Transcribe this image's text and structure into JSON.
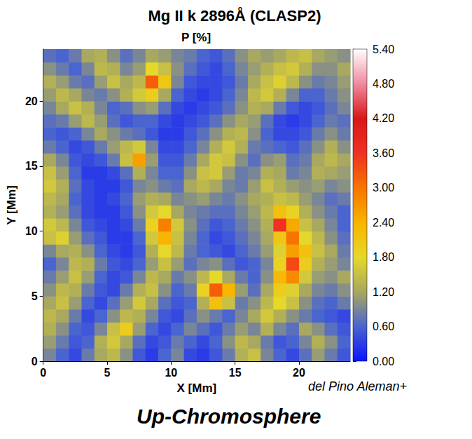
{
  "chart_data": {
    "type": "heatmap",
    "title": "Mg II k 2896Å (CLASP2)",
    "subtitle": "P [%]",
    "x_label": "X [Mm]",
    "y_label": "Y [Mm]",
    "annotations": [
      "del Pino Aleman+",
      "Up-Chromosphere"
    ],
    "xlim": [
      0,
      24
    ],
    "ylim": [
      0,
      24
    ],
    "xticks": [
      0,
      5,
      10,
      15,
      20
    ],
    "yticks": [
      0,
      5,
      10,
      15,
      20
    ],
    "grid": false,
    "x": [
      0.5,
      1.5,
      2.5,
      3.5,
      4.5,
      5.5,
      6.5,
      7.5,
      8.5,
      9.5,
      10.5,
      11.5,
      12.5,
      13.5,
      14.5,
      15.5,
      16.5,
      17.5,
      18.5,
      19.5,
      20.5,
      21.5,
      22.5,
      23.5
    ],
    "y": [
      0.5,
      1.5,
      2.5,
      3.5,
      4.5,
      5.5,
      6.5,
      7.5,
      8.5,
      9.5,
      10.5,
      11.5,
      12.5,
      13.5,
      14.5,
      15.5,
      16.5,
      17.5,
      18.5,
      19.5,
      20.5,
      21.5,
      22.5,
      23.5
    ],
    "values": [
      [
        0.9,
        0.6,
        0.4,
        0.8,
        1.2,
        1.4,
        1.0,
        0.5,
        0.3,
        0.6,
        0.9,
        0.4,
        0.3,
        0.5,
        0.8,
        1.3,
        1.5,
        0.9,
        0.6,
        0.4,
        0.7,
        1.1,
        0.8,
        0.5
      ],
      [
        1.1,
        0.8,
        0.5,
        0.6,
        1.3,
        1.6,
        1.2,
        0.7,
        0.4,
        0.5,
        0.8,
        0.6,
        0.4,
        0.6,
        1.0,
        1.4,
        1.2,
        0.8,
        0.5,
        0.6,
        0.9,
        1.3,
        1.0,
        0.6
      ],
      [
        1.3,
        1.0,
        0.6,
        0.5,
        0.9,
        1.5,
        2.0,
        1.1,
        0.6,
        0.4,
        0.6,
        0.9,
        0.7,
        0.5,
        0.8,
        1.1,
        0.9,
        1.3,
        0.9,
        0.7,
        1.2,
        1.0,
        0.7,
        0.5
      ],
      [
        1.4,
        1.2,
        0.8,
        0.4,
        0.6,
        1.0,
        1.4,
        1.3,
        0.9,
        0.5,
        0.4,
        0.7,
        1.0,
        0.8,
        0.6,
        0.9,
        1.2,
        1.6,
        1.3,
        1.0,
        0.8,
        0.6,
        0.5,
        0.4
      ],
      [
        1.2,
        1.5,
        1.1,
        0.6,
        0.4,
        0.7,
        1.1,
        1.6,
        1.2,
        0.7,
        0.5,
        0.6,
        1.3,
        2.2,
        1.5,
        0.8,
        1.0,
        1.4,
        1.8,
        1.5,
        1.0,
        0.7,
        0.6,
        0.8
      ],
      [
        1.0,
        1.4,
        1.3,
        0.8,
        0.5,
        0.4,
        0.8,
        1.3,
        1.5,
        1.0,
        0.6,
        0.8,
        1.9,
        3.2,
        2.4,
        1.1,
        0.7,
        1.2,
        2.0,
        1.7,
        1.2,
        0.9,
        0.8,
        1.0
      ],
      [
        0.8,
        1.1,
        1.5,
        1.1,
        0.6,
        0.4,
        0.5,
        0.9,
        1.4,
        1.2,
        0.8,
        1.0,
        1.4,
        1.8,
        1.2,
        0.8,
        0.6,
        1.0,
        2.3,
        2.8,
        1.6,
        1.1,
        1.0,
        1.2
      ],
      [
        0.6,
        0.9,
        1.4,
        1.3,
        0.8,
        0.5,
        0.4,
        0.6,
        1.1,
        1.5,
        1.1,
        0.7,
        0.9,
        1.0,
        0.7,
        0.5,
        0.6,
        0.9,
        1.9,
        3.4,
        2.0,
        1.3,
        1.1,
        0.9
      ],
      [
        0.9,
        1.2,
        1.3,
        1.0,
        0.6,
        0.4,
        0.3,
        0.5,
        1.3,
        1.8,
        1.4,
        0.8,
        0.6,
        0.5,
        0.4,
        0.6,
        0.8,
        1.1,
        1.7,
        2.6,
        2.2,
        1.5,
        1.2,
        0.8
      ],
      [
        1.5,
        1.7,
        1.1,
        0.7,
        0.5,
        0.3,
        0.3,
        0.6,
        1.6,
        2.4,
        1.5,
        0.9,
        0.6,
        0.4,
        0.5,
        0.7,
        0.9,
        1.2,
        2.1,
        3.0,
        1.8,
        1.4,
        1.0,
        0.7
      ],
      [
        1.6,
        1.4,
        0.9,
        0.5,
        0.4,
        0.3,
        0.4,
        0.8,
        1.9,
        2.9,
        1.6,
        1.0,
        0.7,
        0.5,
        0.6,
        0.8,
        1.0,
        1.3,
        3.6,
        2.5,
        1.5,
        1.2,
        0.9,
        0.6
      ],
      [
        1.3,
        1.1,
        0.7,
        0.4,
        0.3,
        0.3,
        0.5,
        1.0,
        1.6,
        1.8,
        1.2,
        0.9,
        0.8,
        0.7,
        0.7,
        0.9,
        1.1,
        1.4,
        2.2,
        1.9,
        1.3,
        1.0,
        0.8,
        0.6
      ],
      [
        1.4,
        1.2,
        0.6,
        0.4,
        0.3,
        0.4,
        0.6,
        1.1,
        1.3,
        1.2,
        0.9,
        1.0,
        1.1,
        0.9,
        0.8,
        1.0,
        1.2,
        1.3,
        1.5,
        1.4,
        1.1,
        0.9,
        0.7,
        0.8
      ],
      [
        1.6,
        1.3,
        0.7,
        0.4,
        0.3,
        0.3,
        0.5,
        0.9,
        1.0,
        0.8,
        0.7,
        1.2,
        1.4,
        1.2,
        0.9,
        0.8,
        1.1,
        1.5,
        1.3,
        1.1,
        1.0,
        1.1,
        0.9,
        1.0
      ],
      [
        1.5,
        1.1,
        0.6,
        0.3,
        0.3,
        0.4,
        0.7,
        1.3,
        0.9,
        0.6,
        0.6,
        1.0,
        1.5,
        1.6,
        1.1,
        0.8,
        0.9,
        1.3,
        1.2,
        0.8,
        0.9,
        1.3,
        1.2,
        1.1
      ],
      [
        1.2,
        0.9,
        0.5,
        0.4,
        0.5,
        0.8,
        1.5,
        2.6,
        1.1,
        0.5,
        0.5,
        0.8,
        1.2,
        1.6,
        1.5,
        1.0,
        0.7,
        1.0,
        1.1,
        0.7,
        0.8,
        1.2,
        1.4,
        1.2
      ],
      [
        0.8,
        0.6,
        0.4,
        0.5,
        0.8,
        1.1,
        1.4,
        1.6,
        0.9,
        0.4,
        0.4,
        0.6,
        0.9,
        1.3,
        1.6,
        1.3,
        0.8,
        0.7,
        0.6,
        0.5,
        0.7,
        1.0,
        1.3,
        1.0
      ],
      [
        0.6,
        0.5,
        0.6,
        0.9,
        1.2,
        1.0,
        0.8,
        0.7,
        0.5,
        0.3,
        0.3,
        0.5,
        0.7,
        1.0,
        1.3,
        1.4,
        1.0,
        0.6,
        0.4,
        0.4,
        0.5,
        0.8,
        1.0,
        0.8
      ],
      [
        0.7,
        0.8,
        1.1,
        1.4,
        1.1,
        0.7,
        0.5,
        0.6,
        0.6,
        0.4,
        0.3,
        0.4,
        0.5,
        0.7,
        1.0,
        1.2,
        1.1,
        0.7,
        0.4,
        0.3,
        0.4,
        0.6,
        0.8,
        0.7
      ],
      [
        0.9,
        1.2,
        1.5,
        1.3,
        0.9,
        0.6,
        0.7,
        1.0,
        1.1,
        0.7,
        0.4,
        0.3,
        0.4,
        0.5,
        0.7,
        1.0,
        1.3,
        1.2,
        0.8,
        0.5,
        0.4,
        0.5,
        0.7,
        0.9
      ],
      [
        1.1,
        1.4,
        1.2,
        0.9,
        0.8,
        1.0,
        1.3,
        1.6,
        2.0,
        1.2,
        0.6,
        0.4,
        0.3,
        0.4,
        0.6,
        0.9,
        1.4,
        1.6,
        1.3,
        0.9,
        0.6,
        0.6,
        0.8,
        1.0
      ],
      [
        1.3,
        1.1,
        0.8,
        0.7,
        1.1,
        1.5,
        1.2,
        1.4,
        3.2,
        2.1,
        0.9,
        0.5,
        0.4,
        0.4,
        0.5,
        0.8,
        1.2,
        1.5,
        1.7,
        1.4,
        1.0,
        0.8,
        0.9,
        1.1
      ],
      [
        1.0,
        0.8,
        0.6,
        0.9,
        1.4,
        1.3,
        0.9,
        1.1,
        1.8,
        1.5,
        1.0,
        0.7,
        0.5,
        0.4,
        0.6,
        0.9,
        1.1,
        1.3,
        1.5,
        1.6,
        1.3,
        1.0,
        1.0,
        1.2
      ],
      [
        0.7,
        0.6,
        0.8,
        1.2,
        1.3,
        1.0,
        0.7,
        0.9,
        1.2,
        1.1,
        0.9,
        0.8,
        0.6,
        0.5,
        0.7,
        1.0,
        1.2,
        1.1,
        1.2,
        1.4,
        1.5,
        1.2,
        1.1,
        1.0
      ]
    ],
    "colorbar_range": [
      0,
      5.4
    ],
    "colorbar_ticks": [
      {
        "value": 0,
        "label": "0.00"
      },
      {
        "value": 0.6,
        "label": "0.60"
      },
      {
        "value": 1.2,
        "label": "1.20"
      },
      {
        "value": 1.8,
        "label": "1.80"
      },
      {
        "value": 2.4,
        "label": "2.40"
      },
      {
        "value": 3,
        "label": "3.00"
      },
      {
        "value": 3.6,
        "label": "3.60"
      },
      {
        "value": 4.2,
        "label": "4.20"
      },
      {
        "value": 4.8,
        "label": "4.80"
      },
      {
        "value": 5.4,
        "label": "5.40"
      }
    ]
  }
}
